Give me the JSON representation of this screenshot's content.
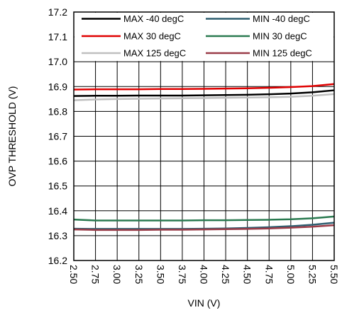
{
  "chart_data": {
    "type": "line",
    "title": "",
    "xlabel": "VIN (V)",
    "ylabel": "OVP THRESHOLD (V)",
    "xlim": [
      2.5,
      5.5
    ],
    "ylim": [
      16.2,
      17.2
    ],
    "x_ticks": [
      "2.50",
      "2.75",
      "3.00",
      "3.25",
      "3.50",
      "3.75",
      "4.00",
      "4.25",
      "4.50",
      "4.75",
      "5.00",
      "5.25",
      "5.50"
    ],
    "y_ticks": [
      "16.2",
      "16.3",
      "16.4",
      "16.5",
      "16.6",
      "16.7",
      "16.8",
      "16.9",
      "17.0",
      "17.1",
      "17.2"
    ],
    "grid": true,
    "legend_position": "top",
    "x": [
      2.5,
      2.75,
      3.0,
      3.25,
      3.5,
      3.75,
      4.0,
      4.25,
      4.5,
      4.75,
      5.0,
      5.25,
      5.5
    ],
    "series": [
      {
        "name": "MAX -40 degC",
        "color": "#000000",
        "values": [
          16.862,
          16.863,
          16.863,
          16.864,
          16.864,
          16.864,
          16.865,
          16.866,
          16.867,
          16.869,
          16.872,
          16.877,
          16.885
        ]
      },
      {
        "name": "MAX 30 degC",
        "color": "#e00000",
        "values": [
          16.888,
          16.889,
          16.889,
          16.889,
          16.89,
          16.89,
          16.891,
          16.892,
          16.893,
          16.895,
          16.898,
          16.902,
          16.91
        ]
      },
      {
        "name": "MAX 125 degC",
        "color": "#bfbfbf",
        "values": [
          16.845,
          16.848,
          16.85,
          16.851,
          16.852,
          16.853,
          16.854,
          16.855,
          16.856,
          16.857,
          16.859,
          16.863,
          16.87
        ]
      },
      {
        "name": "MIN -40 degC",
        "color": "#2e5e70",
        "values": [
          16.328,
          16.327,
          16.327,
          16.327,
          16.327,
          16.327,
          16.328,
          16.329,
          16.331,
          16.334,
          16.338,
          16.344,
          16.352
        ]
      },
      {
        "name": "MIN 30 degC",
        "color": "#2a7a50",
        "values": [
          16.365,
          16.361,
          16.361,
          16.361,
          16.361,
          16.361,
          16.362,
          16.362,
          16.363,
          16.364,
          16.366,
          16.37,
          16.377
        ]
      },
      {
        "name": "MIN 125 degC",
        "color": "#9a3c48",
        "values": [
          16.325,
          16.323,
          16.323,
          16.323,
          16.324,
          16.324,
          16.325,
          16.326,
          16.327,
          16.329,
          16.332,
          16.336,
          16.342
        ]
      }
    ]
  }
}
